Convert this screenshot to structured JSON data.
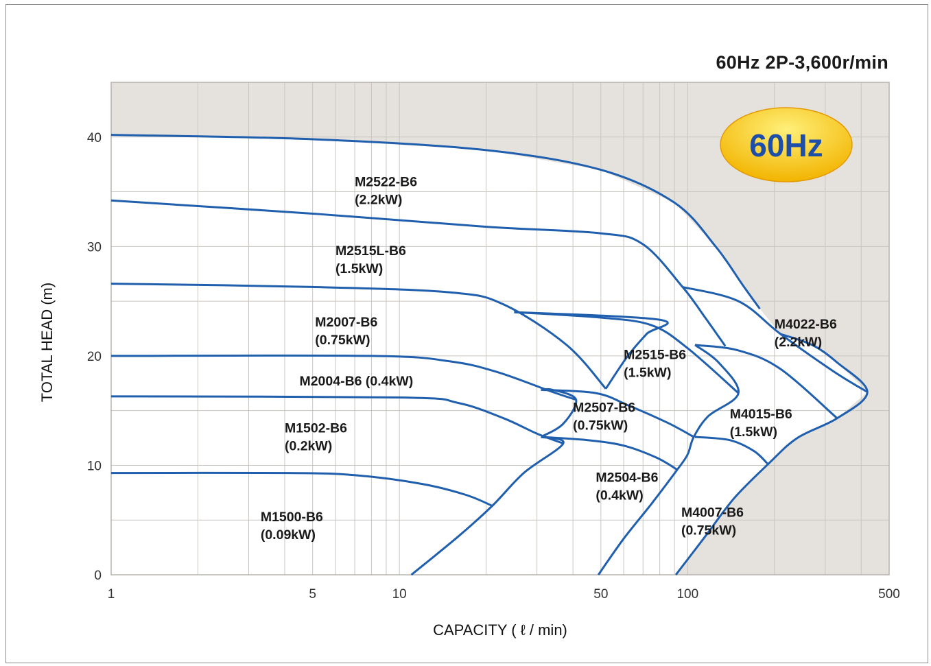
{
  "chart_data": {
    "type": "line",
    "subtitle": "60Hz 2P-3,600r/min",
    "badge": "60Hz",
    "xlabel": "CAPACITY ( ℓ / min)",
    "ylabel": "TOTAL HEAD (m)",
    "x_scale": "log",
    "xlim": [
      1,
      500
    ],
    "ylim": [
      0,
      45
    ],
    "x_ticks": [
      1,
      5,
      10,
      50,
      100,
      500
    ],
    "x_tick_labels": [
      "1",
      "5",
      "10",
      "50",
      "100",
      "500"
    ],
    "y_ticks": [
      0,
      10,
      20,
      30,
      40
    ],
    "y_tick_labels": [
      "0",
      "10",
      "20",
      "30",
      "40"
    ],
    "grid": true,
    "colors": {
      "curve": "#1f5fad",
      "shaded_area": "#e5e1dd",
      "grid": "#c9c5c1",
      "badge_fill": "#f2b400",
      "badge_text": "#1d4fa8"
    },
    "labels": [
      {
        "id": "M2522-B6",
        "model": "M2522-B6",
        "power": "(2.2kW)",
        "x": 7.0,
        "y": 35.5
      },
      {
        "id": "M2515L-B6",
        "model": "M2515L-B6",
        "power": "(1.5kW)",
        "x": 6.0,
        "y": 29.2
      },
      {
        "id": "M2007-B6",
        "model": "M2007-B6",
        "power": "(0.75kW)",
        "x": 5.1,
        "y": 22.7
      },
      {
        "id": "M2004-B6",
        "model": "M2004-B6 (0.4kW)",
        "power": "",
        "x": 4.5,
        "y": 17.3
      },
      {
        "id": "M1502-B6",
        "model": "M1502-B6",
        "power": "(0.2kW)",
        "x": 4.0,
        "y": 13.0
      },
      {
        "id": "M1500-B6",
        "model": "M1500-B6",
        "power": "(0.09kW)",
        "x": 3.3,
        "y": 4.9
      },
      {
        "id": "M2515-B6",
        "model": "M2515-B6",
        "power": "(1.5kW)",
        "x": 60.0,
        "y": 19.7
      },
      {
        "id": "M2507-B6",
        "model": "M2507-B6",
        "power": "(0.75kW)",
        "x": 40.0,
        "y": 14.9
      },
      {
        "id": "M2504-B6",
        "model": "M2504-B6",
        "power": "(0.4kW)",
        "x": 48.0,
        "y": 8.5
      },
      {
        "id": "M4022-B6",
        "model": "M4022-B6",
        "power": "(2.2kW)",
        "x": 200.0,
        "y": 22.5
      },
      {
        "id": "M4015-B6",
        "model": "M4015-B6",
        "power": "(1.5kW)",
        "x": 140.0,
        "y": 14.3
      },
      {
        "id": "M4007-B6",
        "model": "M4007-B6",
        "power": "(0.75kW)",
        "x": 95.0,
        "y": 5.3
      }
    ],
    "series": [
      {
        "id": "M2522-B6",
        "points": [
          [
            1,
            40.2
          ],
          [
            5,
            39.8
          ],
          [
            20,
            38.8
          ],
          [
            50,
            37.0
          ],
          [
            90,
            34.0
          ],
          [
            125,
            30.0
          ],
          [
            155,
            26.5
          ],
          [
            178,
            24.3
          ]
        ]
      },
      {
        "id": "M2515L-B6",
        "points": [
          [
            1,
            34.2
          ],
          [
            5,
            33.0
          ],
          [
            20,
            31.8
          ],
          [
            50,
            31.2
          ],
          [
            70,
            30.2
          ],
          [
            96,
            26.3
          ],
          [
            115,
            23.5
          ],
          [
            135,
            20.9
          ]
        ]
      },
      {
        "id": "M2007-B6",
        "points": [
          [
            1,
            26.6
          ],
          [
            5,
            26.3
          ],
          [
            15,
            25.8
          ],
          [
            23,
            24.7
          ],
          [
            38,
            21.0
          ],
          [
            52,
            17.0
          ]
        ]
      },
      {
        "id": "M2004-B6",
        "points": [
          [
            1,
            20.0
          ],
          [
            8,
            20.0
          ],
          [
            15,
            19.5
          ],
          [
            22,
            18.5
          ],
          [
            34,
            16.7
          ],
          [
            41,
            16.0
          ]
        ]
      },
      {
        "id": "M1502-B6",
        "points": [
          [
            1,
            16.3
          ],
          [
            10,
            16.2
          ],
          [
            16,
            15.7
          ],
          [
            23,
            14.3
          ],
          [
            30,
            12.9
          ],
          [
            37,
            12.0
          ]
        ]
      },
      {
        "id": "M1500-B6",
        "points": [
          [
            1,
            9.3
          ],
          [
            4,
            9.3
          ],
          [
            7,
            9.1
          ],
          [
            12,
            8.3
          ],
          [
            17,
            7.3
          ],
          [
            21,
            6.3
          ]
        ]
      },
      {
        "id": "M2515-B6",
        "points": [
          [
            25,
            24.0
          ],
          [
            50,
            23.5
          ],
          [
            75,
            22.8
          ],
          [
            100,
            20.7
          ],
          [
            150,
            16.6
          ]
        ]
      },
      {
        "id": "M2507-B6",
        "points": [
          [
            31,
            16.9
          ],
          [
            48,
            16.6
          ],
          [
            62,
            15.5
          ],
          [
            85,
            13.9
          ],
          [
            105,
            12.6
          ]
        ]
      },
      {
        "id": "M2504-B6",
        "points": [
          [
            31,
            12.6
          ],
          [
            45,
            12.3
          ],
          [
            60,
            11.8
          ],
          [
            78,
            10.7
          ],
          [
            92,
            9.6
          ]
        ]
      },
      {
        "id": "M4022-B6",
        "points": [
          [
            96,
            26.3
          ],
          [
            150,
            25.0
          ],
          [
            210,
            22.0
          ],
          [
            320,
            18.6
          ],
          [
            420,
            16.7
          ]
        ]
      },
      {
        "id": "M4015-B6",
        "points": [
          [
            106,
            21.0
          ],
          [
            150,
            20.5
          ],
          [
            210,
            18.8
          ],
          [
            330,
            14.3
          ]
        ]
      },
      {
        "id": "M4007-B6",
        "points": [
          [
            106,
            12.6
          ],
          [
            140,
            12.3
          ],
          [
            170,
            11.3
          ],
          [
            190,
            10.1
          ]
        ]
      },
      {
        "id": "pump-boundary-1",
        "points": [
          [
            11,
            0
          ],
          [
            16,
            3.5
          ],
          [
            21,
            6.3
          ],
          [
            27,
            9.3
          ],
          [
            37,
            12.0
          ],
          [
            31,
            12.6
          ]
        ]
      },
      {
        "id": "pump-boundary-2",
        "points": [
          [
            31,
            12.6
          ],
          [
            37,
            13.8
          ],
          [
            41,
            16.0
          ],
          [
            34,
            16.9
          ],
          [
            31,
            16.9
          ]
        ]
      },
      {
        "id": "pump-boundary-3",
        "points": [
          [
            52,
            17.0
          ],
          [
            62,
            20.0
          ],
          [
            72,
            22.0
          ],
          [
            80,
            23.3
          ],
          [
            25,
            24.0
          ]
        ]
      },
      {
        "id": "pump-boundary-4",
        "points": [
          [
            49,
            0
          ],
          [
            60,
            3.3
          ],
          [
            75,
            6.5
          ],
          [
            92,
            9.6
          ],
          [
            100,
            11.0
          ],
          [
            105,
            12.6
          ],
          [
            118,
            14.5
          ],
          [
            150,
            16.6
          ],
          [
            128,
            19.4
          ],
          [
            106,
            21.0
          ]
        ]
      },
      {
        "id": "pump-boundary-5",
        "points": [
          [
            91,
            0
          ],
          [
            115,
            3.5
          ],
          [
            145,
            7.0
          ],
          [
            190,
            10.1
          ],
          [
            240,
            12.5
          ],
          [
            330,
            14.3
          ],
          [
            420,
            16.7
          ],
          [
            330,
            19.4
          ],
          [
            270,
            21.0
          ],
          [
            210,
            22.0
          ]
        ]
      }
    ]
  }
}
